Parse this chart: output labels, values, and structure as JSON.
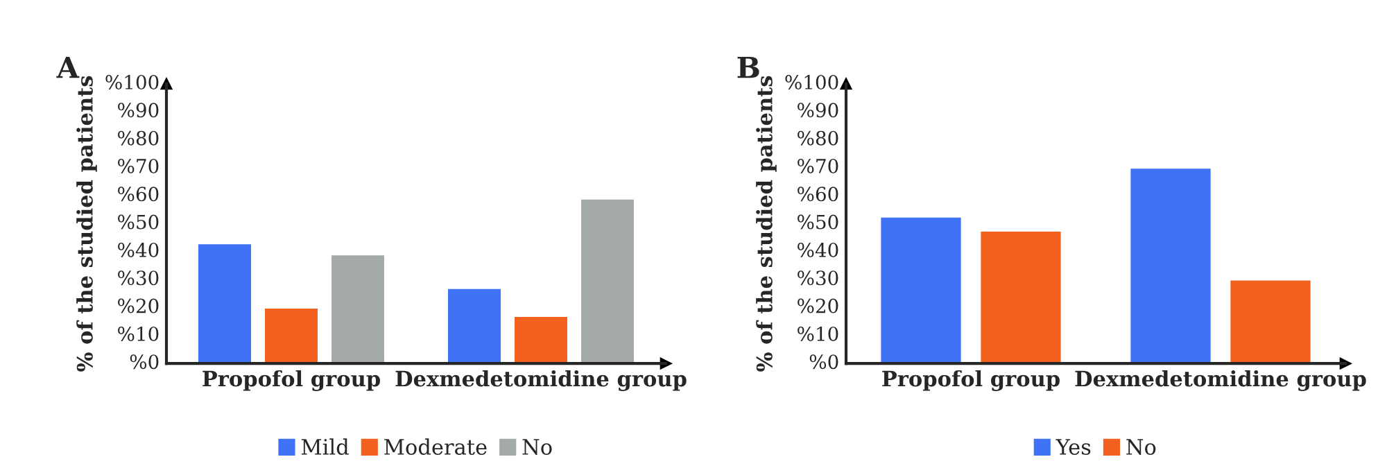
{
  "chart_data": [
    {
      "type": "bar",
      "title": "A",
      "ylabel": "% of the studied patients",
      "categories": [
        "Propofol group",
        "Dexmedetomidine group"
      ],
      "series": [
        {
          "name": "Mild",
          "color": "#3f72f4",
          "values": [
            43,
            27
          ]
        },
        {
          "name": "Moderate",
          "color": "#f2621e",
          "values": [
            20,
            17
          ]
        },
        {
          "name": "No",
          "color": "#a3aaa8",
          "values": [
            39,
            59
          ]
        }
      ],
      "ylim": [
        0,
        100
      ],
      "yticks": [
        {
          "value": 0,
          "label": "%0"
        },
        {
          "value": 10,
          "label": "%10"
        },
        {
          "value": 20,
          "label": "%20"
        },
        {
          "value": 30,
          "label": "%30"
        },
        {
          "value": 40,
          "label": "%40"
        },
        {
          "value": 50,
          "label": "%50"
        },
        {
          "value": 60,
          "label": "%60"
        },
        {
          "value": 70,
          "label": "%70"
        },
        {
          "value": 80,
          "label": "%80"
        },
        {
          "value": 90,
          "label": "%90"
        },
        {
          "value": 100,
          "label": "%100"
        }
      ],
      "grid": false,
      "legend": "bottom"
    },
    {
      "type": "bar",
      "title": "B",
      "ylabel": "% of the studied patients",
      "categories": [
        "Propofol group",
        "Dexmedetomidine group"
      ],
      "series": [
        {
          "name": "Yes",
          "color": "#3f72f4",
          "values": [
            52.5,
            70
          ]
        },
        {
          "name": "No",
          "color": "#f2621e",
          "values": [
            47.5,
            30
          ]
        }
      ],
      "ylim": [
        0,
        100
      ],
      "yticks": [
        {
          "value": 0,
          "label": "%0"
        },
        {
          "value": 10,
          "label": "%10"
        },
        {
          "value": 20,
          "label": "%20"
        },
        {
          "value": 30,
          "label": "%30"
        },
        {
          "value": 40,
          "label": "%40"
        },
        {
          "value": 50,
          "label": "%50"
        },
        {
          "value": 60,
          "label": "%60"
        },
        {
          "value": 70,
          "label": "%70"
        },
        {
          "value": 80,
          "label": "%80"
        },
        {
          "value": 90,
          "label": "%90"
        },
        {
          "value": 100,
          "label": "%100"
        }
      ],
      "grid": false,
      "legend": "bottom"
    }
  ]
}
